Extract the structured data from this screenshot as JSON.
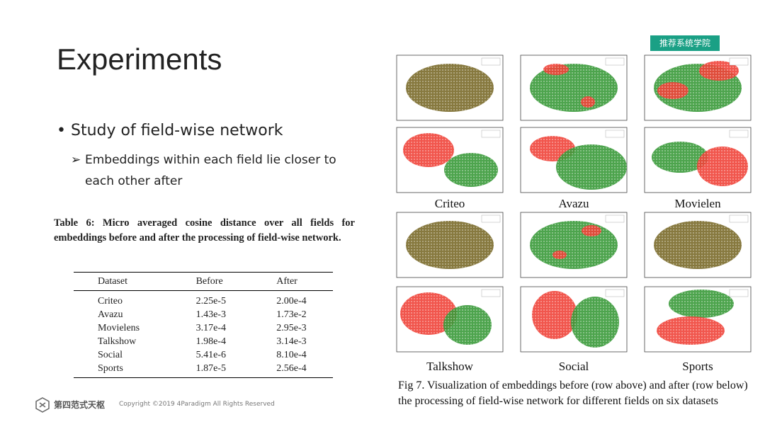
{
  "watermark": "推荐系统学院",
  "title": "Experiments",
  "bullet": "Study of field-wise network",
  "sub_bullet": "Embeddings within each field lie closer to each other after",
  "table": {
    "caption": "Table 6: Micro averaged cosine distance over all fields for embeddings before and after the processing of field-wise network.",
    "header": [
      "Dataset",
      "Before",
      "After"
    ],
    "rows": [
      [
        "Criteo",
        "2.25e-5",
        "2.00e-4"
      ],
      [
        "Avazu",
        "1.43e-3",
        "1.73e-2"
      ],
      [
        "Movielens",
        "3.17e-4",
        "2.95e-3"
      ],
      [
        "Talkshow",
        "1.98e-4",
        "3.14e-3"
      ],
      [
        "Social",
        "5.41e-6",
        "8.10e-4"
      ],
      [
        "Sports",
        "1.87e-5",
        "2.56e-4"
      ]
    ]
  },
  "figure": {
    "labels": [
      "Criteo",
      "Avazu",
      "Movielen",
      "Talkshow",
      "Social",
      "Sports"
    ],
    "caption": "Fig 7. Visualization of embeddings before (row above) and after (row below) the processing of field-wise network for different fields on six datasets"
  },
  "footer": {
    "logo": "第四范式天枢",
    "copyright": "Copyright ©2019 4Paradigm All Rights Reserved"
  }
}
